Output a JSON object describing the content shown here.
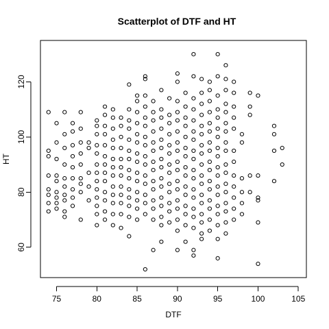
{
  "chart_data": {
    "type": "scatter",
    "title": "Scatterplot of DTF and HT",
    "xlabel": "DTF",
    "ylabel": "HT",
    "xlim": [
      73,
      106
    ],
    "ylim": [
      49,
      135
    ],
    "xticks": [
      75,
      80,
      85,
      90,
      95,
      100,
      105
    ],
    "yticks": [
      60,
      80,
      100,
      120
    ],
    "grid": false,
    "legend": "none",
    "series": [
      {
        "marker": "open-circle",
        "color": "#000000",
        "points": [
          [
            74,
            109
          ],
          [
            74,
            95
          ],
          [
            74,
            93
          ],
          [
            74,
            86
          ],
          [
            74,
            81
          ],
          [
            74,
            79
          ],
          [
            74,
            76
          ],
          [
            74,
            73
          ],
          [
            75,
            105
          ],
          [
            75,
            98
          ],
          [
            75,
            92
          ],
          [
            75,
            86
          ],
          [
            75,
            84
          ],
          [
            75,
            80
          ],
          [
            75,
            78
          ],
          [
            75,
            76
          ],
          [
            75,
            74
          ],
          [
            76,
            109
          ],
          [
            76,
            101
          ],
          [
            76,
            96
          ],
          [
            76,
            90
          ],
          [
            76,
            85
          ],
          [
            76,
            82
          ],
          [
            76,
            79
          ],
          [
            76,
            77
          ],
          [
            76,
            73
          ],
          [
            76,
            71
          ],
          [
            77,
            105
          ],
          [
            77,
            102
          ],
          [
            77,
            97
          ],
          [
            77,
            93
          ],
          [
            77,
            89
          ],
          [
            77,
            85
          ],
          [
            77,
            81
          ],
          [
            77,
            78
          ],
          [
            77,
            75
          ],
          [
            78,
            109
          ],
          [
            78,
            103
          ],
          [
            78,
            98
          ],
          [
            78,
            94
          ],
          [
            78,
            90
          ],
          [
            78,
            85
          ],
          [
            78,
            83
          ],
          [
            78,
            80
          ],
          [
            78,
            70
          ],
          [
            79,
            98
          ],
          [
            79,
            96
          ],
          [
            79,
            87
          ],
          [
            79,
            82
          ],
          [
            79,
            77
          ],
          [
            80,
            106
          ],
          [
            80,
            104
          ],
          [
            80,
            101
          ],
          [
            80,
            97
          ],
          [
            80,
            94
          ],
          [
            80,
            90
          ],
          [
            80,
            87
          ],
          [
            80,
            84
          ],
          [
            80,
            81
          ],
          [
            80,
            78
          ],
          [
            80,
            75
          ],
          [
            80,
            72
          ],
          [
            80,
            68
          ],
          [
            81,
            111
          ],
          [
            81,
            108
          ],
          [
            81,
            104
          ],
          [
            81,
            101
          ],
          [
            81,
            97
          ],
          [
            81,
            93
          ],
          [
            81,
            90
          ],
          [
            81,
            87
          ],
          [
            81,
            84
          ],
          [
            81,
            80
          ],
          [
            81,
            77
          ],
          [
            81,
            73
          ],
          [
            81,
            70
          ],
          [
            82,
            110
          ],
          [
            82,
            107
          ],
          [
            82,
            103
          ],
          [
            82,
            99
          ],
          [
            82,
            96
          ],
          [
            82,
            92
          ],
          [
            82,
            89
          ],
          [
            82,
            86
          ],
          [
            82,
            82
          ],
          [
            82,
            79
          ],
          [
            82,
            76
          ],
          [
            82,
            72
          ],
          [
            82,
            68
          ],
          [
            83,
            107
          ],
          [
            83,
            104
          ],
          [
            83,
            100
          ],
          [
            83,
            96
          ],
          [
            83,
            92
          ],
          [
            83,
            89
          ],
          [
            83,
            86
          ],
          [
            83,
            82
          ],
          [
            83,
            79
          ],
          [
            83,
            76
          ],
          [
            83,
            72
          ],
          [
            83,
            67
          ],
          [
            84,
            119
          ],
          [
            84,
            110
          ],
          [
            84,
            106
          ],
          [
            84,
            103
          ],
          [
            84,
            99
          ],
          [
            84,
            95
          ],
          [
            84,
            92
          ],
          [
            84,
            88
          ],
          [
            84,
            85
          ],
          [
            84,
            81
          ],
          [
            84,
            78
          ],
          [
            84,
            75
          ],
          [
            84,
            71
          ],
          [
            84,
            64
          ],
          [
            85,
            115
          ],
          [
            85,
            113
          ],
          [
            85,
            109
          ],
          [
            85,
            105
          ],
          [
            85,
            101
          ],
          [
            85,
            98
          ],
          [
            85,
            94
          ],
          [
            85,
            91
          ],
          [
            85,
            87
          ],
          [
            85,
            84
          ],
          [
            85,
            80
          ],
          [
            85,
            77
          ],
          [
            85,
            74
          ],
          [
            85,
            70
          ],
          [
            86,
            122
          ],
          [
            86,
            121
          ],
          [
            86,
            115
          ],
          [
            86,
            111
          ],
          [
            86,
            107
          ],
          [
            86,
            104
          ],
          [
            86,
            100
          ],
          [
            86,
            97
          ],
          [
            86,
            93
          ],
          [
            86,
            90
          ],
          [
            86,
            86
          ],
          [
            86,
            83
          ],
          [
            86,
            79
          ],
          [
            86,
            76
          ],
          [
            86,
            72
          ],
          [
            86,
            52
          ],
          [
            87,
            113
          ],
          [
            87,
            109
          ],
          [
            87,
            106
          ],
          [
            87,
            102
          ],
          [
            87,
            98
          ],
          [
            87,
            95
          ],
          [
            87,
            91
          ],
          [
            87,
            88
          ],
          [
            87,
            84
          ],
          [
            87,
            81
          ],
          [
            87,
            77
          ],
          [
            87,
            74
          ],
          [
            87,
            70
          ],
          [
            87,
            59
          ],
          [
            88,
            117
          ],
          [
            88,
            110
          ],
          [
            88,
            107
          ],
          [
            88,
            103
          ],
          [
            88,
            99
          ],
          [
            88,
            96
          ],
          [
            88,
            92
          ],
          [
            88,
            89
          ],
          [
            88,
            85
          ],
          [
            88,
            82
          ],
          [
            88,
            78
          ],
          [
            88,
            75
          ],
          [
            88,
            71
          ],
          [
            88,
            68
          ],
          [
            88,
            62
          ],
          [
            89,
            114
          ],
          [
            89,
            108
          ],
          [
            89,
            105
          ],
          [
            89,
            101
          ],
          [
            89,
            97
          ],
          [
            89,
            94
          ],
          [
            89,
            90
          ],
          [
            89,
            87
          ],
          [
            89,
            83
          ],
          [
            89,
            80
          ],
          [
            89,
            76
          ],
          [
            89,
            73
          ],
          [
            89,
            69
          ],
          [
            90,
            123
          ],
          [
            90,
            120
          ],
          [
            90,
            113
          ],
          [
            90,
            109
          ],
          [
            90,
            106
          ],
          [
            90,
            102
          ],
          [
            90,
            98
          ],
          [
            90,
            95
          ],
          [
            90,
            91
          ],
          [
            90,
            88
          ],
          [
            90,
            84
          ],
          [
            90,
            81
          ],
          [
            90,
            77
          ],
          [
            90,
            74
          ],
          [
            90,
            70
          ],
          [
            90,
            66
          ],
          [
            90,
            59
          ],
          [
            91,
            116
          ],
          [
            91,
            111
          ],
          [
            91,
            107
          ],
          [
            91,
            104
          ],
          [
            91,
            100
          ],
          [
            91,
            96
          ],
          [
            91,
            93
          ],
          [
            91,
            89
          ],
          [
            91,
            86
          ],
          [
            91,
            82
          ],
          [
            91,
            79
          ],
          [
            91,
            75
          ],
          [
            91,
            72
          ],
          [
            91,
            68
          ],
          [
            91,
            62
          ],
          [
            92,
            130
          ],
          [
            92,
            122
          ],
          [
            92,
            114
          ],
          [
            92,
            110
          ],
          [
            92,
            106
          ],
          [
            92,
            102
          ],
          [
            92,
            99
          ],
          [
            92,
            95
          ],
          [
            92,
            92
          ],
          [
            92,
            88
          ],
          [
            92,
            85
          ],
          [
            92,
            81
          ],
          [
            92,
            78
          ],
          [
            92,
            74
          ],
          [
            92,
            71
          ],
          [
            92,
            67
          ],
          [
            92,
            59
          ],
          [
            92,
            57
          ],
          [
            93,
            121
          ],
          [
            93,
            116
          ],
          [
            93,
            112
          ],
          [
            93,
            108
          ],
          [
            93,
            104
          ],
          [
            93,
            101
          ],
          [
            93,
            97
          ],
          [
            93,
            94
          ],
          [
            93,
            90
          ],
          [
            93,
            86
          ],
          [
            93,
            83
          ],
          [
            93,
            79
          ],
          [
            93,
            76
          ],
          [
            93,
            72
          ],
          [
            93,
            69
          ],
          [
            93,
            65
          ],
          [
            93,
            63
          ],
          [
            94,
            120
          ],
          [
            94,
            117
          ],
          [
            94,
            113
          ],
          [
            94,
            109
          ],
          [
            94,
            105
          ],
          [
            94,
            102
          ],
          [
            94,
            98
          ],
          [
            94,
            95
          ],
          [
            94,
            91
          ],
          [
            94,
            88
          ],
          [
            94,
            84
          ],
          [
            94,
            81
          ],
          [
            94,
            77
          ],
          [
            94,
            74
          ],
          [
            94,
            70
          ],
          [
            94,
            66
          ],
          [
            95,
            130
          ],
          [
            95,
            122
          ],
          [
            95,
            115
          ],
          [
            95,
            110
          ],
          [
            95,
            107
          ],
          [
            95,
            103
          ],
          [
            95,
            100
          ],
          [
            95,
            96
          ],
          [
            95,
            93
          ],
          [
            95,
            89
          ],
          [
            95,
            86
          ],
          [
            95,
            82
          ],
          [
            95,
            79
          ],
          [
            95,
            75
          ],
          [
            95,
            72
          ],
          [
            95,
            68
          ],
          [
            95,
            63
          ],
          [
            95,
            56
          ],
          [
            96,
            126
          ],
          [
            96,
            121
          ],
          [
            96,
            117
          ],
          [
            96,
            112
          ],
          [
            96,
            109
          ],
          [
            96,
            105
          ],
          [
            96,
            102
          ],
          [
            96,
            98
          ],
          [
            96,
            95
          ],
          [
            96,
            90
          ],
          [
            96,
            87
          ],
          [
            96,
            83
          ],
          [
            96,
            80
          ],
          [
            96,
            76
          ],
          [
            96,
            73
          ],
          [
            96,
            69
          ],
          [
            96,
            65
          ],
          [
            97,
            120
          ],
          [
            97,
            116
          ],
          [
            97,
            111
          ],
          [
            97,
            107
          ],
          [
            97,
            103
          ],
          [
            97,
            95
          ],
          [
            97,
            91
          ],
          [
            97,
            86
          ],
          [
            97,
            82
          ],
          [
            97,
            78
          ],
          [
            97,
            74
          ],
          [
            97,
            70
          ],
          [
            98,
            101
          ],
          [
            98,
            98
          ],
          [
            98,
            85
          ],
          [
            98,
            80
          ],
          [
            98,
            76
          ],
          [
            98,
            72
          ],
          [
            99,
            116
          ],
          [
            99,
            111
          ],
          [
            99,
            108
          ],
          [
            99,
            86
          ],
          [
            99,
            80
          ],
          [
            100,
            115
          ],
          [
            100,
            86
          ],
          [
            100,
            78
          ],
          [
            100,
            77
          ],
          [
            100,
            69
          ],
          [
            100,
            54
          ],
          [
            102,
            104
          ],
          [
            102,
            101
          ],
          [
            102,
            95
          ],
          [
            102,
            84
          ],
          [
            103,
            96
          ],
          [
            103,
            90
          ]
        ]
      }
    ]
  }
}
